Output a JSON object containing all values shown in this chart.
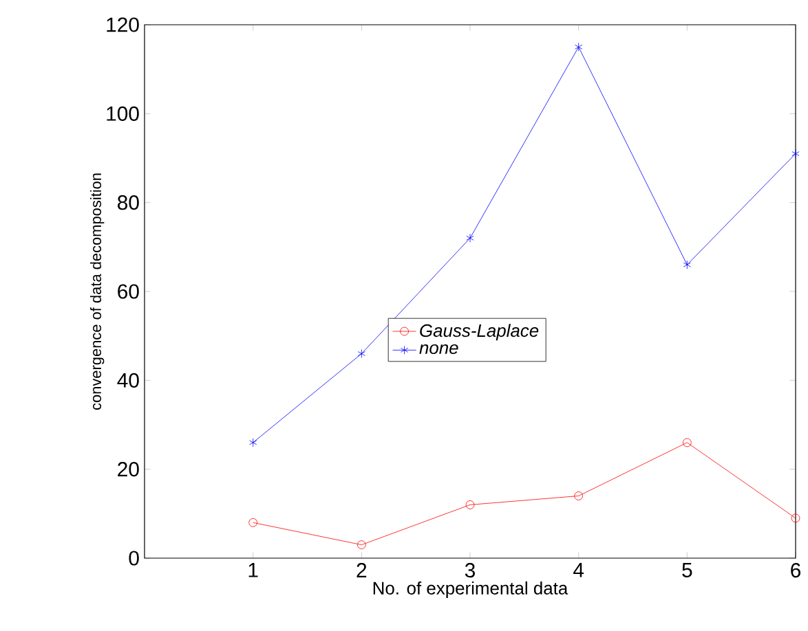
{
  "chart_data": {
    "type": "line",
    "xlabel": "No. of experimental data",
    "ylabel": "convergence of data decomposition",
    "x": [
      1,
      2,
      3,
      4,
      5,
      6
    ],
    "series": [
      {
        "name": "Gauss-Laplace",
        "color": "#ff0000",
        "marker": "circle",
        "values": [
          8,
          3,
          12,
          14,
          26,
          9
        ]
      },
      {
        "name": "none",
        "color": "#0000ff",
        "marker": "cross",
        "values": [
          26,
          46,
          72,
          115,
          66,
          91
        ]
      }
    ],
    "xlim": [
      0,
      6
    ],
    "xticks": [
      1,
      2,
      3,
      4,
      5,
      6
    ],
    "ylim": [
      0,
      120
    ],
    "yticks": [
      0,
      20,
      40,
      60,
      80,
      100,
      120
    ],
    "grid": false,
    "legend": "center",
    "line_style": "solid"
  }
}
